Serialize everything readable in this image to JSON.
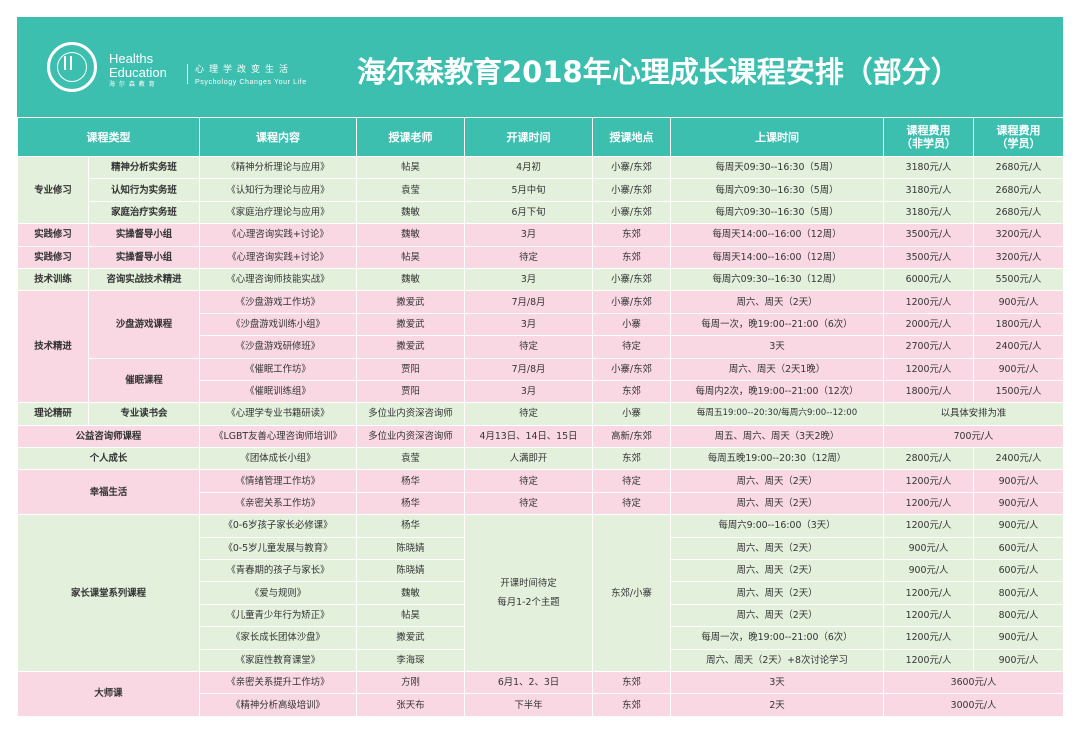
{
  "header": {
    "logo_en_line1": "Healths",
    "logo_en_line2": "Education",
    "logo_cn": "海 尔 森 教 育",
    "slogan_cn": "心理学改变生活",
    "slogan_en": "Psychology Changes Your Life",
    "title": "海尔森教育2018年心理成长课程安排（部分）"
  },
  "colors": {
    "header_bg": "#3dbfb0",
    "row_green": "#e3f0dc",
    "row_pink": "#f9d8e3",
    "category_text": "#0f9e8f"
  },
  "table": {
    "headers": {
      "type": "课程类型",
      "content": "课程内容",
      "teacher": "授课老师",
      "start": "开课时间",
      "location": "授课地点",
      "schedule": "上课时间",
      "fee_nonmember_1": "课程费用",
      "fee_nonmember_2": "（非学员）",
      "fee_member_1": "课程费用",
      "fee_member_2": "（学员）"
    },
    "rows": [
      {
        "group": "专业修习",
        "sub": "精神分析实务班",
        "content": "《精神分析理论与应用》",
        "teacher": "帖昊",
        "start": "4月初",
        "location": "小寨/东郊",
        "time": "每周天09:30--16:30（5周）",
        "fee_non": "3180元/人",
        "fee_mem": "2680元/人"
      },
      {
        "sub": "认知行为实务班",
        "content": "《认知行为理论与应用》",
        "teacher": "袁莹",
        "start": "5月中旬",
        "location": "小寨/东郊",
        "time": "每周六09:30--16:30（5周）",
        "fee_non": "3180元/人",
        "fee_mem": "2680元/人"
      },
      {
        "sub": "家庭治疗实务班",
        "content": "《家庭治疗理论与应用》",
        "teacher": "魏敏",
        "start": "6月下旬",
        "location": "小寨/东郊",
        "time": "每周六09:30--16:30（5周）",
        "fee_non": "3180元/人",
        "fee_mem": "2680元/人"
      },
      {
        "group": "实践修习",
        "sub": "实操督导小组",
        "content": "《心理咨询实践+讨论》",
        "teacher": "魏敏",
        "start": "3月",
        "location": "东郊",
        "time": "每周天14:00--16:00（12周）",
        "fee_non": "3500元/人",
        "fee_mem": "3200元/人"
      },
      {
        "group": "实践修习",
        "sub": "实操督导小组",
        "content": "《心理咨询实践+讨论》",
        "teacher": "帖昊",
        "start": "待定",
        "location": "东郊",
        "time": "每周天14:00--16:00（12周）",
        "fee_non": "3500元/人",
        "fee_mem": "3200元/人"
      },
      {
        "group": "技术训练",
        "sub": "咨询实战技术精进",
        "content": "《心理咨询师技能实战》",
        "teacher": "魏敏",
        "start": "3月",
        "location": "小寨/东郊",
        "time": "每周六09:30--16:30（12周）",
        "fee_non": "6000元/人",
        "fee_mem": "5500元/人"
      },
      {
        "group": "技术精进",
        "sub": "沙盘游戏课程",
        "content": "《沙盘游戏工作坊》",
        "teacher": "撒爱武",
        "start": "7月/8月",
        "location": "小寨/东郊",
        "time": "周六、周天（2天）",
        "fee_non": "1200元/人",
        "fee_mem": "900元/人"
      },
      {
        "content": "《沙盘游戏训练小组》",
        "teacher": "撒爱武",
        "start": "3月",
        "location": "小寨",
        "time": "每周一次，晚19:00--21:00（6次）",
        "fee_non": "2000元/人",
        "fee_mem": "1800元/人"
      },
      {
        "content": "《沙盘游戏研修班》",
        "teacher": "撒爱武",
        "start": "待定",
        "location": "待定",
        "time": "3天",
        "fee_non": "2700元/人",
        "fee_mem": "2400元/人"
      },
      {
        "sub": "催眠课程",
        "content": "《催眠工作坊》",
        "teacher": "贾阳",
        "start": "7月/8月",
        "location": "小寨/东郊",
        "time": "周六、周天（2天1晚）",
        "fee_non": "1200元/人",
        "fee_mem": "900元/人"
      },
      {
        "content": "《催眠训练组》",
        "teacher": "贾阳",
        "start": "3月",
        "location": "东郊",
        "time": "每周内2次，晚19:00--21:00（12次）",
        "fee_non": "1800元/人",
        "fee_mem": "1500元/人"
      },
      {
        "group": "理论精研",
        "sub": "专业读书会",
        "content": "《心理学专业书籍研读》",
        "teacher": "多位业内资深咨询师",
        "start": "待定",
        "location": "小寨",
        "time": "每周五19:00--20:30/每周六9:00--12:00",
        "fee_merged": "以具体安排为准"
      },
      {
        "group": "公益咨询师课程",
        "content": "《LGBT友善心理咨询师培训》",
        "teacher": "多位业内资深咨询师",
        "start": "4月13日、14日、15日",
        "location": "高新/东郊",
        "time": "周五、周六、周天（3天2晚）",
        "fee_merged": "700元/人"
      },
      {
        "group": "个人成长",
        "content": "《团体成长小组》",
        "teacher": "袁莹",
        "start": "人满即开",
        "location": "东郊",
        "time": "每周五晚19:00--20:30（12周）",
        "fee_non": "2800元/人",
        "fee_mem": "2400元/人"
      },
      {
        "group": "幸福生活",
        "content": "《情绪管理工作坊》",
        "teacher": "杨华",
        "start": "待定",
        "location": "待定",
        "time": "周六、周天（2天）",
        "fee_non": "1200元/人",
        "fee_mem": "900元/人"
      },
      {
        "content": "《亲密关系工作坊》",
        "teacher": "杨华",
        "start": "待定",
        "location": "待定",
        "time": "周六、周天（2天）",
        "fee_non": "1200元/人",
        "fee_mem": "900元/人"
      },
      {
        "group": "家长课堂系列课程",
        "content": "《0-6岁孩子家长必修课》",
        "teacher": "杨华",
        "start_line1": "开课时间待定",
        "start_line2": "每月1-2个主题",
        "location": "东郊/小寨",
        "time": "每周六9:00--16:00（3天）",
        "fee_non": "1200元/人",
        "fee_mem": "900元/人"
      },
      {
        "content": "《0-5岁儿童发展与教育》",
        "teacher": "陈晓婧",
        "time": "周六、周天（2天）",
        "fee_non": "900元/人",
        "fee_mem": "600元/人"
      },
      {
        "content": "《青春期的孩子与家长》",
        "teacher": "陈晓婧",
        "time": "周六、周天（2天）",
        "fee_non": "900元/人",
        "fee_mem": "600元/人"
      },
      {
        "content": "《爱与规则》",
        "teacher": "魏敏",
        "time": "周六、周天（2天）",
        "fee_non": "1200元/人",
        "fee_mem": "800元/人"
      },
      {
        "content": "《儿童青少年行为矫正》",
        "teacher": "帖昊",
        "time": "周六、周天（2天）",
        "fee_non": "1200元/人",
        "fee_mem": "800元/人"
      },
      {
        "content": "《家长成长团体沙盘》",
        "teacher": "撒爱武",
        "time": "每周一次，晚19:00--21:00（6次）",
        "fee_non": "1200元/人",
        "fee_mem": "900元/人"
      },
      {
        "content": "《家庭性教育课堂》",
        "teacher": "李海琛",
        "time": "周六、周天（2天）+8次讨论学习",
        "fee_non": "1200元/人",
        "fee_mem": "900元/人"
      },
      {
        "group": "大师课",
        "content": "《亲密关系提升工作坊》",
        "teacher": "方刚",
        "start": "6月1、2、3日",
        "location": "东郊",
        "time": "3天",
        "fee_merged": "3600元/人"
      },
      {
        "content": "《精神分析高级培训》",
        "teacher": "张天布",
        "start": "下半年",
        "location": "东郊",
        "time": "2天",
        "fee_merged": "3000元/人"
      }
    ]
  }
}
